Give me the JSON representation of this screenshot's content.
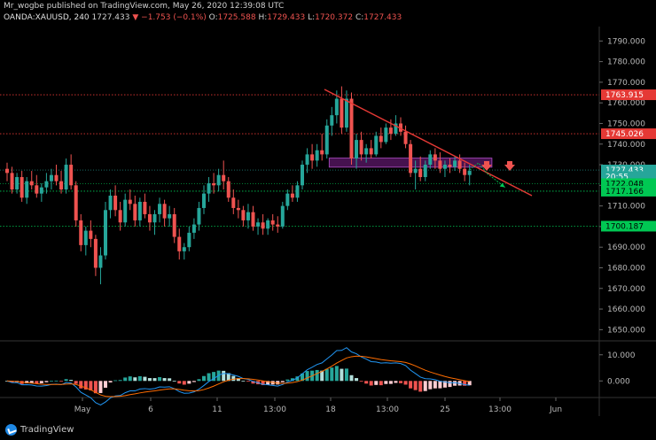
{
  "header": {
    "line1": "Mr_wogbe published on TradingView.com, May 26, 2020 12:39:08 UTC",
    "symbol": "OANDA:XAUUSD, 240",
    "last": "1727.433",
    "change": "▼ −1.753 (−0.1%)",
    "o_label": "O:",
    "o_val": "1725.588",
    "h_label": "H:",
    "h_val": "1729.433",
    "l_label": "L:",
    "l_val": "1720.372",
    "c_label": "C:",
    "c_val": "1727.433"
  },
  "price_axis": {
    "ticks": [
      "1790.000",
      "1780.000",
      "1770.000",
      "1760.000",
      "1750.000",
      "1740.000",
      "1730.000",
      "1720.000",
      "1710.000",
      "1700.000",
      "1690.000",
      "1680.000",
      "1670.000",
      "1660.000",
      "1650.000"
    ],
    "badges": [
      {
        "text": "1763.915",
        "price": 1763.915,
        "color": "#e53935"
      },
      {
        "text": "1745.026",
        "price": 1745.026,
        "color": "#e53935"
      },
      {
        "text": "1727.433",
        "price": 1727.433,
        "color": "#26a69a"
      },
      {
        "text": "20:55",
        "price": 1724.3,
        "color": "#26a69a"
      },
      {
        "text": "1722.048",
        "price": 1720.8,
        "color": "#00c853"
      },
      {
        "text": "1717.166",
        "price": 1717.166,
        "color": "#00c853"
      },
      {
        "text": "1700.187",
        "price": 1700.187,
        "color": "#00c853"
      }
    ]
  },
  "macd_axis": {
    "ticks": [
      "10.000",
      "0.000"
    ]
  },
  "time_axis": {
    "ticks": [
      "May",
      "6",
      "11",
      "13:00",
      "18",
      "13:00",
      "25",
      "13:00",
      "Jun"
    ]
  },
  "branding": {
    "logo_text": "TradingView"
  },
  "chart_data": {
    "type": "candlestick",
    "symbol": "OANDA:XAUUSD",
    "interval": "240",
    "ylim": [
      1645,
      1797
    ],
    "x_ticks": [
      "May",
      "6",
      "11",
      "13:00",
      "18",
      "13:00",
      "25",
      "13:00",
      "Jun"
    ],
    "y_ticks": [
      1650,
      1660,
      1670,
      1680,
      1690,
      1700,
      1710,
      1720,
      1730,
      1740,
      1750,
      1760,
      1770,
      1780,
      1790
    ],
    "candles": [
      [
        1728,
        1731,
        1722,
        1726
      ],
      [
        1726,
        1729,
        1716,
        1718
      ],
      [
        1718,
        1726,
        1716,
        1724
      ],
      [
        1724,
        1727,
        1712,
        1714
      ],
      [
        1714,
        1724,
        1711,
        1722
      ],
      [
        1722,
        1727,
        1718,
        1720
      ],
      [
        1720,
        1725,
        1714,
        1716
      ],
      [
        1716,
        1721,
        1712,
        1719
      ],
      [
        1719,
        1726,
        1716,
        1722
      ],
      [
        1722,
        1728,
        1718,
        1725
      ],
      [
        1725,
        1730,
        1720,
        1722
      ],
      [
        1722,
        1727,
        1716,
        1718
      ],
      [
        1718,
        1733,
        1716,
        1730
      ],
      [
        1730,
        1735,
        1718,
        1720
      ],
      [
        1720,
        1722,
        1700,
        1703
      ],
      [
        1703,
        1706,
        1688,
        1691
      ],
      [
        1691,
        1700,
        1686,
        1698
      ],
      [
        1698,
        1703,
        1690,
        1694
      ],
      [
        1694,
        1696,
        1676,
        1680
      ],
      [
        1680,
        1690,
        1672,
        1686
      ],
      [
        1686,
        1712,
        1684,
        1708
      ],
      [
        1708,
        1718,
        1704,
        1715
      ],
      [
        1715,
        1720,
        1705,
        1708
      ],
      [
        1708,
        1712,
        1698,
        1702
      ],
      [
        1702,
        1716,
        1700,
        1713
      ],
      [
        1713,
        1718,
        1708,
        1711
      ],
      [
        1711,
        1715,
        1700,
        1703
      ],
      [
        1703,
        1714,
        1700,
        1712
      ],
      [
        1712,
        1716,
        1704,
        1706
      ],
      [
        1706,
        1710,
        1698,
        1702
      ],
      [
        1702,
        1708,
        1696,
        1706
      ],
      [
        1706,
        1714,
        1702,
        1711
      ],
      [
        1711,
        1713,
        1700,
        1704
      ],
      [
        1704,
        1710,
        1700,
        1706
      ],
      [
        1706,
        1709,
        1692,
        1695
      ],
      [
        1695,
        1699,
        1684,
        1688
      ],
      [
        1688,
        1692,
        1684,
        1690
      ],
      [
        1690,
        1700,
        1688,
        1697
      ],
      [
        1697,
        1704,
        1694,
        1701
      ],
      [
        1701,
        1712,
        1698,
        1709
      ],
      [
        1709,
        1720,
        1706,
        1716
      ],
      [
        1716,
        1724,
        1712,
        1721
      ],
      [
        1721,
        1726,
        1716,
        1720
      ],
      [
        1720,
        1728,
        1717,
        1725
      ],
      [
        1725,
        1732,
        1718,
        1722
      ],
      [
        1722,
        1724,
        1712,
        1714
      ],
      [
        1714,
        1718,
        1706,
        1709
      ],
      [
        1709,
        1713,
        1704,
        1708
      ],
      [
        1708,
        1710,
        1700,
        1703
      ],
      [
        1703,
        1711,
        1699,
        1707
      ],
      [
        1707,
        1710,
        1698,
        1700
      ],
      [
        1700,
        1704,
        1696,
        1702
      ],
      [
        1702,
        1706,
        1696,
        1699
      ],
      [
        1699,
        1704,
        1696,
        1703
      ],
      [
        1703,
        1706,
        1698,
        1701
      ],
      [
        1701,
        1705,
        1697,
        1700
      ],
      [
        1700,
        1712,
        1699,
        1710
      ],
      [
        1710,
        1718,
        1708,
        1716
      ],
      [
        1716,
        1720,
        1712,
        1714
      ],
      [
        1714,
        1722,
        1712,
        1720
      ],
      [
        1720,
        1732,
        1718,
        1730
      ],
      [
        1730,
        1738,
        1726,
        1735
      ],
      [
        1735,
        1740,
        1728,
        1732
      ],
      [
        1732,
        1740,
        1729,
        1737
      ],
      [
        1737,
        1745,
        1732,
        1735
      ],
      [
        1735,
        1752,
        1733,
        1749
      ],
      [
        1749,
        1758,
        1744,
        1754
      ],
      [
        1754,
        1766,
        1750,
        1762
      ],
      [
        1762,
        1768,
        1745,
        1748
      ],
      [
        1748,
        1766,
        1746,
        1762
      ],
      [
        1762,
        1765,
        1730,
        1733
      ],
      [
        1733,
        1745,
        1728,
        1742
      ],
      [
        1742,
        1746,
        1732,
        1735
      ],
      [
        1735,
        1740,
        1731,
        1738
      ],
      [
        1738,
        1742,
        1733,
        1735
      ],
      [
        1735,
        1746,
        1734,
        1744
      ],
      [
        1744,
        1748,
        1738,
        1741
      ],
      [
        1741,
        1750,
        1740,
        1748
      ],
      [
        1748,
        1752,
        1742,
        1745
      ],
      [
        1745,
        1754,
        1744,
        1750
      ],
      [
        1750,
        1753,
        1744,
        1746
      ],
      [
        1746,
        1749,
        1738,
        1740
      ],
      [
        1740,
        1742,
        1724,
        1726
      ],
      [
        1726,
        1732,
        1718,
        1728
      ],
      [
        1728,
        1734,
        1722,
        1724
      ],
      [
        1724,
        1732,
        1722,
        1730
      ],
      [
        1730,
        1737,
        1728,
        1735
      ],
      [
        1735,
        1738,
        1728,
        1732
      ],
      [
        1732,
        1736,
        1726,
        1728
      ],
      [
        1728,
        1732,
        1724,
        1730
      ],
      [
        1730,
        1733,
        1726,
        1729
      ],
      [
        1729,
        1734,
        1727,
        1732
      ],
      [
        1732,
        1735,
        1726,
        1728
      ],
      [
        1728,
        1731,
        1722,
        1725
      ],
      [
        1725,
        1730,
        1720,
        1727
      ]
    ],
    "drawings": {
      "trendline": {
        "from": [
          68,
          1768
        ],
        "to": [
          108,
          1724
        ],
        "color": "#e53935"
      },
      "zone": {
        "from": [
          66,
          1732
        ],
        "to": [
          98,
          1730
        ],
        "color": "#9c27b0"
      },
      "levels": [
        1763.915,
        1745.026,
        1722.048,
        1717.166,
        1700.187
      ]
    },
    "macd_ylim": [
      -6,
      15
    ]
  }
}
